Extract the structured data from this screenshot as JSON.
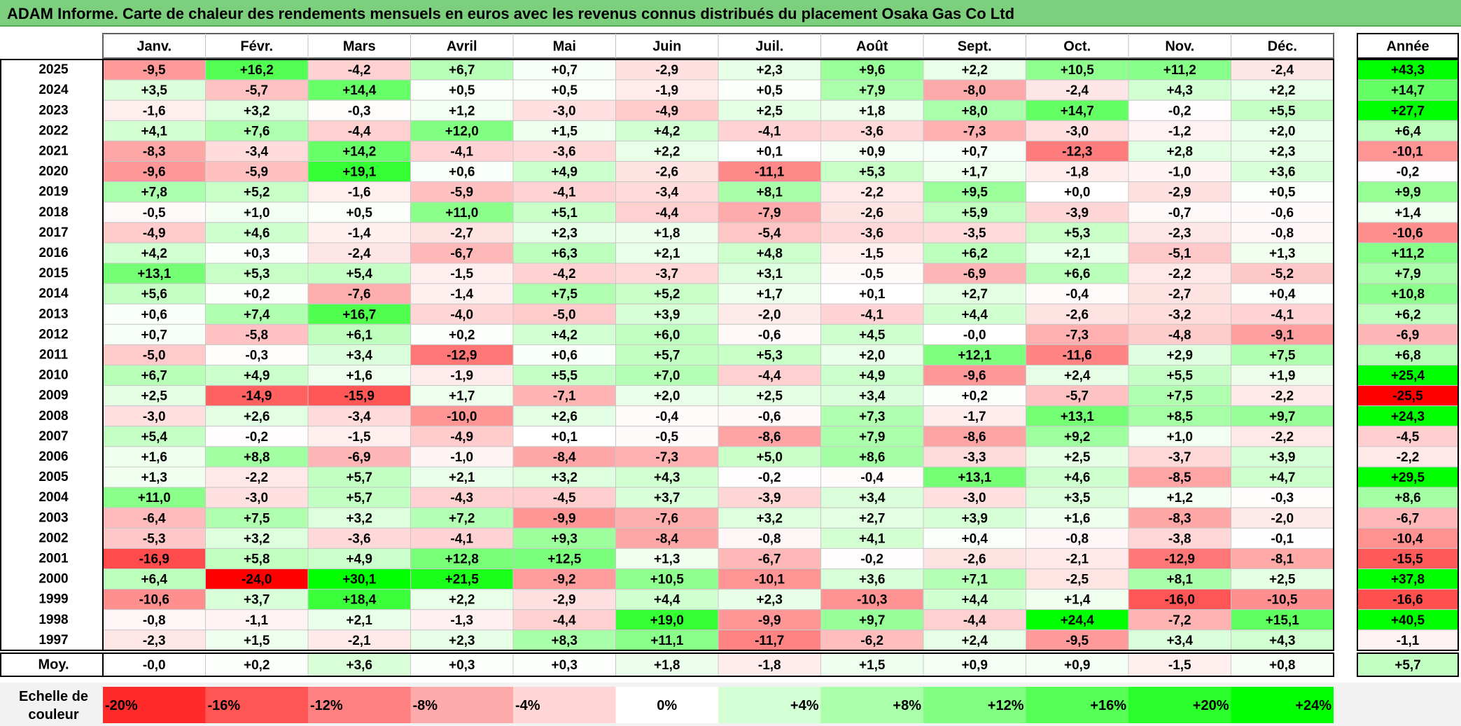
{
  "title": "ADAM Informe. Carte de chaleur des rendements mensuels en euros avec les revenus connus distribués du placement Osaka Gas Co Ltd",
  "chart_data": {
    "type": "heatmap",
    "title": "ADAM Informe. Carte de chaleur des rendements mensuels en euros avec les revenus connus distribués du placement Osaka Gas Co Ltd",
    "columns": [
      "Janv.",
      "Févr.",
      "Mars",
      "Avril",
      "Mai",
      "Juin",
      "Juil.",
      "Août",
      "Sept.",
      "Oct.",
      "Nov.",
      "Déc."
    ],
    "annual_header": "Année",
    "rows": [
      {
        "year": "2025",
        "values": [
          "-9,5",
          "+16,2",
          "-4,2",
          "+6,7",
          "+0,7",
          "-2,9",
          "+2,3",
          "+9,6",
          "+2,2",
          "+10,5",
          "+11,2",
          "-2,4"
        ],
        "annual": "+43,3"
      },
      {
        "year": "2024",
        "values": [
          "+3,5",
          "-5,7",
          "+14,4",
          "+0,5",
          "+0,5",
          "-1,9",
          "+0,5",
          "+7,9",
          "-8,0",
          "-2,4",
          "+4,3",
          "+2,2"
        ],
        "annual": "+14,7"
      },
      {
        "year": "2023",
        "values": [
          "-1,6",
          "+3,2",
          "-0,3",
          "+1,2",
          "-3,0",
          "-4,9",
          "+2,5",
          "+1,8",
          "+8,0",
          "+14,7",
          "-0,2",
          "+5,5"
        ],
        "annual": "+27,7"
      },
      {
        "year": "2022",
        "values": [
          "+4,1",
          "+7,6",
          "-4,4",
          "+12,0",
          "+1,5",
          "+4,2",
          "-4,1",
          "-3,6",
          "-7,3",
          "-3,0",
          "-1,2",
          "+2,0"
        ],
        "annual": "+6,4"
      },
      {
        "year": "2021",
        "values": [
          "-8,3",
          "-3,4",
          "+14,2",
          "-4,1",
          "-3,6",
          "+2,2",
          "+0,1",
          "+0,9",
          "+0,7",
          "-12,3",
          "+2,8",
          "+2,3"
        ],
        "annual": "-10,1"
      },
      {
        "year": "2020",
        "values": [
          "-9,6",
          "-5,9",
          "+19,1",
          "+0,6",
          "+4,9",
          "-2,6",
          "-11,1",
          "+5,3",
          "+1,7",
          "-1,8",
          "-1,0",
          "+3,6"
        ],
        "annual": "-0,2"
      },
      {
        "year": "2019",
        "values": [
          "+7,8",
          "+5,2",
          "-1,6",
          "-5,9",
          "-4,1",
          "-3,4",
          "+8,1",
          "-2,2",
          "+9,5",
          "+0,0",
          "-2,9",
          "+0,5"
        ],
        "annual": "+9,9"
      },
      {
        "year": "2018",
        "values": [
          "-0,5",
          "+1,0",
          "+0,5",
          "+11,0",
          "+5,1",
          "-4,4",
          "-7,9",
          "-2,6",
          "+5,9",
          "-3,9",
          "-0,7",
          "-0,6"
        ],
        "annual": "+1,4"
      },
      {
        "year": "2017",
        "values": [
          "-4,9",
          "+4,6",
          "-1,4",
          "-2,7",
          "+2,3",
          "+1,8",
          "-5,4",
          "-3,6",
          "-3,5",
          "+5,3",
          "-2,3",
          "-0,8"
        ],
        "annual": "-10,6"
      },
      {
        "year": "2016",
        "values": [
          "+4,2",
          "+0,3",
          "-2,4",
          "-6,7",
          "+6,3",
          "+2,1",
          "+4,8",
          "-1,5",
          "+6,2",
          "+2,1",
          "-5,1",
          "+1,3"
        ],
        "annual": "+11,2"
      },
      {
        "year": "2015",
        "values": [
          "+13,1",
          "+5,3",
          "+5,4",
          "-1,5",
          "-4,2",
          "-3,7",
          "+3,1",
          "-0,5",
          "-6,9",
          "+6,6",
          "-2,2",
          "-5,2"
        ],
        "annual": "+7,9"
      },
      {
        "year": "2014",
        "values": [
          "+5,6",
          "+0,2",
          "-7,6",
          "-1,4",
          "+7,5",
          "+5,2",
          "+1,7",
          "+0,1",
          "+2,7",
          "-0,4",
          "-2,7",
          "+0,4"
        ],
        "annual": "+10,8"
      },
      {
        "year": "2013",
        "values": [
          "+0,6",
          "+7,4",
          "+16,7",
          "-4,0",
          "-5,0",
          "+3,9",
          "-2,0",
          "-4,1",
          "+4,4",
          "-2,6",
          "-3,2",
          "-4,1"
        ],
        "annual": "+6,2"
      },
      {
        "year": "2012",
        "values": [
          "+0,7",
          "-5,8",
          "+6,1",
          "+0,2",
          "+4,2",
          "+6,0",
          "-0,6",
          "+4,5",
          "-0,0",
          "-7,3",
          "-4,8",
          "-9,1"
        ],
        "annual": "-6,9"
      },
      {
        "year": "2011",
        "values": [
          "-5,0",
          "-0,3",
          "+3,4",
          "-12,9",
          "+0,6",
          "+5,7",
          "+5,3",
          "+2,0",
          "+12,1",
          "-11,6",
          "+2,9",
          "+7,5"
        ],
        "annual": "+6,8"
      },
      {
        "year": "2010",
        "values": [
          "+6,7",
          "+4,9",
          "+1,6",
          "-1,9",
          "+5,5",
          "+7,0",
          "-4,4",
          "+4,9",
          "-9,6",
          "+2,4",
          "+5,5",
          "+1,9"
        ],
        "annual": "+25,4"
      },
      {
        "year": "2009",
        "values": [
          "+2,5",
          "-14,9",
          "-15,9",
          "+1,7",
          "-7,1",
          "+2,0",
          "+2,5",
          "+3,4",
          "+0,2",
          "-5,7",
          "+7,5",
          "-2,2"
        ],
        "annual": "-25,5"
      },
      {
        "year": "2008",
        "values": [
          "-3,0",
          "+2,6",
          "-3,4",
          "-10,0",
          "+2,6",
          "-0,4",
          "-0,6",
          "+7,3",
          "-1,7",
          "+13,1",
          "+8,5",
          "+9,7"
        ],
        "annual": "+24,3"
      },
      {
        "year": "2007",
        "values": [
          "+5,4",
          "-0,2",
          "-1,5",
          "-4,9",
          "+0,1",
          "-0,5",
          "-8,6",
          "+7,9",
          "-8,6",
          "+9,2",
          "+1,0",
          "-2,2"
        ],
        "annual": "-4,5"
      },
      {
        "year": "2006",
        "values": [
          "+1,6",
          "+8,8",
          "-6,9",
          "-1,0",
          "-8,4",
          "-7,3",
          "+5,0",
          "+8,6",
          "-3,3",
          "+2,5",
          "-3,7",
          "+3,9"
        ],
        "annual": "-2,2"
      },
      {
        "year": "2005",
        "values": [
          "+1,3",
          "-2,2",
          "+5,7",
          "+2,1",
          "+3,2",
          "+4,3",
          "-0,2",
          "-0,4",
          "+13,1",
          "+4,6",
          "-8,5",
          "+4,7"
        ],
        "annual": "+29,5"
      },
      {
        "year": "2004",
        "values": [
          "+11,0",
          "-3,0",
          "+5,7",
          "-4,3",
          "-4,5",
          "+3,7",
          "-3,9",
          "+3,4",
          "-3,0",
          "+3,5",
          "+1,2",
          "-0,3"
        ],
        "annual": "+8,6"
      },
      {
        "year": "2003",
        "values": [
          "-6,4",
          "+7,5",
          "+3,2",
          "+7,2",
          "-9,9",
          "-7,6",
          "+3,2",
          "+2,7",
          "+3,9",
          "+1,6",
          "-8,3",
          "-2,0"
        ],
        "annual": "-6,7"
      },
      {
        "year": "2002",
        "values": [
          "-5,3",
          "+3,2",
          "-3,6",
          "-4,1",
          "+9,3",
          "-8,4",
          "-0,8",
          "+4,1",
          "+0,4",
          "-0,8",
          "-3,8",
          "-0,1"
        ],
        "annual": "-10,4"
      },
      {
        "year": "2001",
        "values": [
          "-16,9",
          "+5,8",
          "+4,9",
          "+12,8",
          "+12,5",
          "+1,3",
          "-6,7",
          "-0,2",
          "-2,6",
          "-2,1",
          "-12,9",
          "-8,1"
        ],
        "annual": "-15,5"
      },
      {
        "year": "2000",
        "values": [
          "+6,4",
          "-24,0",
          "+30,1",
          "+21,5",
          "-9,2",
          "+10,5",
          "-10,1",
          "+3,6",
          "+7,1",
          "-2,5",
          "+8,1",
          "+2,5"
        ],
        "annual": "+37,8"
      },
      {
        "year": "1999",
        "values": [
          "-10,6",
          "+3,7",
          "+18,4",
          "+2,2",
          "-2,9",
          "+4,4",
          "+2,3",
          "-10,3",
          "+4,4",
          "+1,4",
          "-16,0",
          "-10,5"
        ],
        "annual": "-16,6"
      },
      {
        "year": "1998",
        "values": [
          "-0,8",
          "-1,1",
          "+2,1",
          "-1,3",
          "-4,4",
          "+19,0",
          "-9,9",
          "+9,7",
          "-4,4",
          "+24,4",
          "-7,2",
          "+15,1"
        ],
        "annual": "+40,5"
      },
      {
        "year": "1997",
        "values": [
          "-2,3",
          "+1,5",
          "-2,1",
          "+2,3",
          "+8,3",
          "+11,1",
          "-11,7",
          "-6,2",
          "+2,4",
          "-9,5",
          "+3,4",
          "+4,3"
        ],
        "annual": "-1,1"
      }
    ],
    "average": {
      "label": "Moy.",
      "values": [
        "-0,0",
        "+0,2",
        "+3,6",
        "+0,3",
        "+0,3",
        "+1,8",
        "-1,8",
        "+1,5",
        "+0,9",
        "+0,9",
        "-1,5",
        "+0,8"
      ],
      "annual": "+5,7"
    },
    "color_scale": {
      "label_line1": "Echelle de",
      "label_line2": "couleur",
      "stops": [
        "-20%",
        "-16%",
        "-12%",
        "-8%",
        "-4%",
        "0%",
        "+4%",
        "+8%",
        "+12%",
        "+16%",
        "+20%",
        "+24%"
      ]
    },
    "colors": {
      "negative_max": "#ff0000",
      "neutral": "#ffffff",
      "positive_max": "#00ff00",
      "title_bar": "#7ccf7c"
    }
  }
}
